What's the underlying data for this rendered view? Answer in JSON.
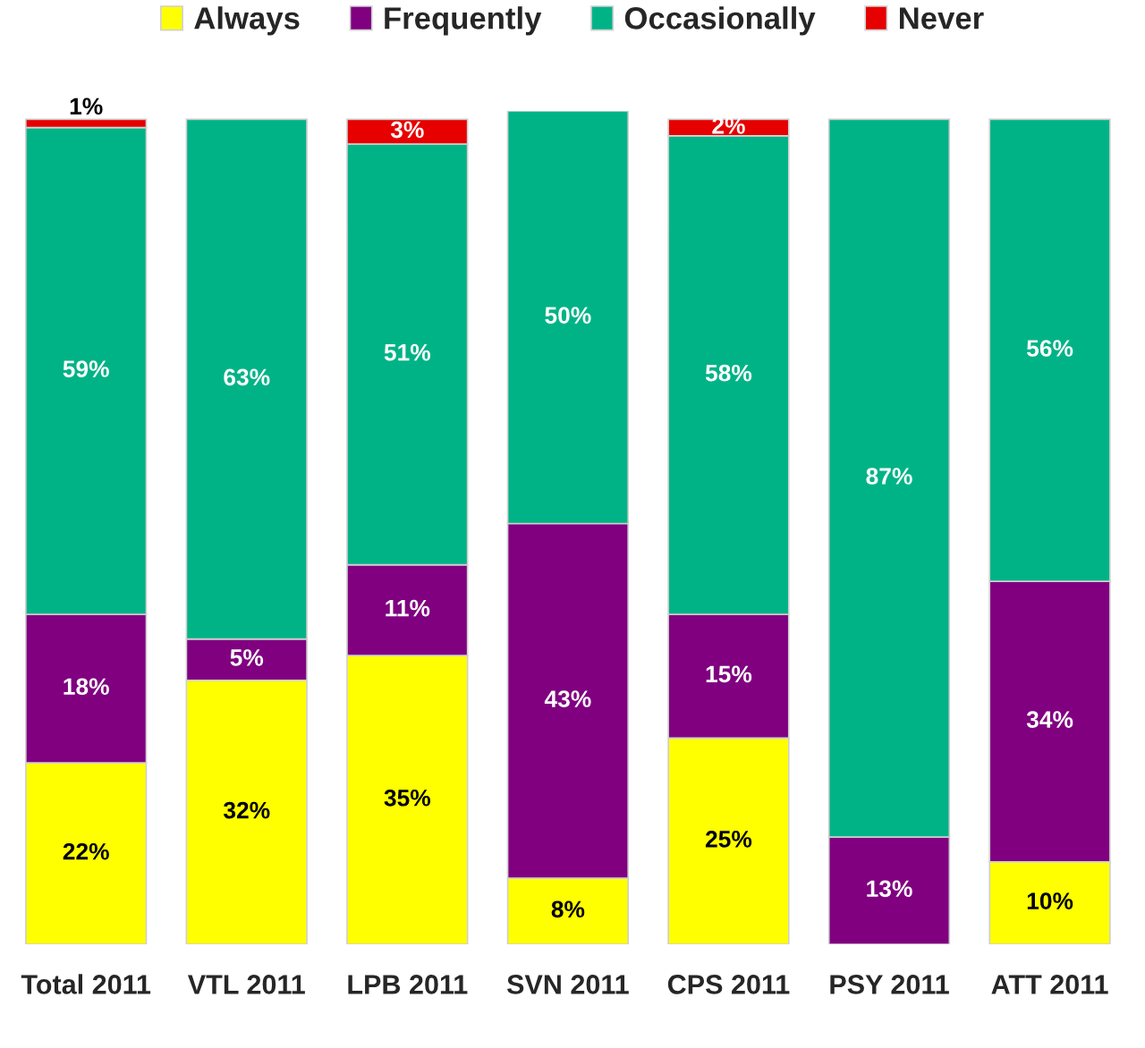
{
  "chart_data": {
    "type": "bar",
    "stacked": true,
    "legend": "top",
    "tick_labels": "x",
    "grid": false,
    "categories": [
      "Total 2011",
      "VTL 2011",
      "LPB 2011",
      "SVN 2011",
      "CPS 2011",
      "PSY 2011",
      "ATT 2011"
    ],
    "series": [
      {
        "name": "Always",
        "color": "#ffff00",
        "values": [
          22,
          32,
          35,
          8,
          25,
          null,
          10
        ],
        "value_labels": [
          "22%",
          "32%",
          "35%",
          "8%",
          "25%",
          null,
          "10%"
        ]
      },
      {
        "name": "Frequently",
        "color": "#800080",
        "values": [
          18,
          5,
          11,
          43,
          15,
          13,
          34
        ],
        "value_labels": [
          "18%",
          "5%",
          "11%",
          "43%",
          "15%",
          "13%",
          "34%"
        ]
      },
      {
        "name": "Occasionally",
        "color": "#00b386",
        "values": [
          59,
          63,
          51,
          50,
          58,
          87,
          56
        ],
        "value_labels": [
          "59%",
          "63%",
          "51%",
          "50%",
          "58%",
          "87%",
          "56%"
        ]
      },
      {
        "name": "Never",
        "color": "#e60000",
        "values": [
          1,
          null,
          3,
          null,
          2,
          null,
          null
        ],
        "value_labels": [
          "1%",
          null,
          "3%",
          null,
          "2%",
          null,
          null
        ]
      }
    ]
  }
}
